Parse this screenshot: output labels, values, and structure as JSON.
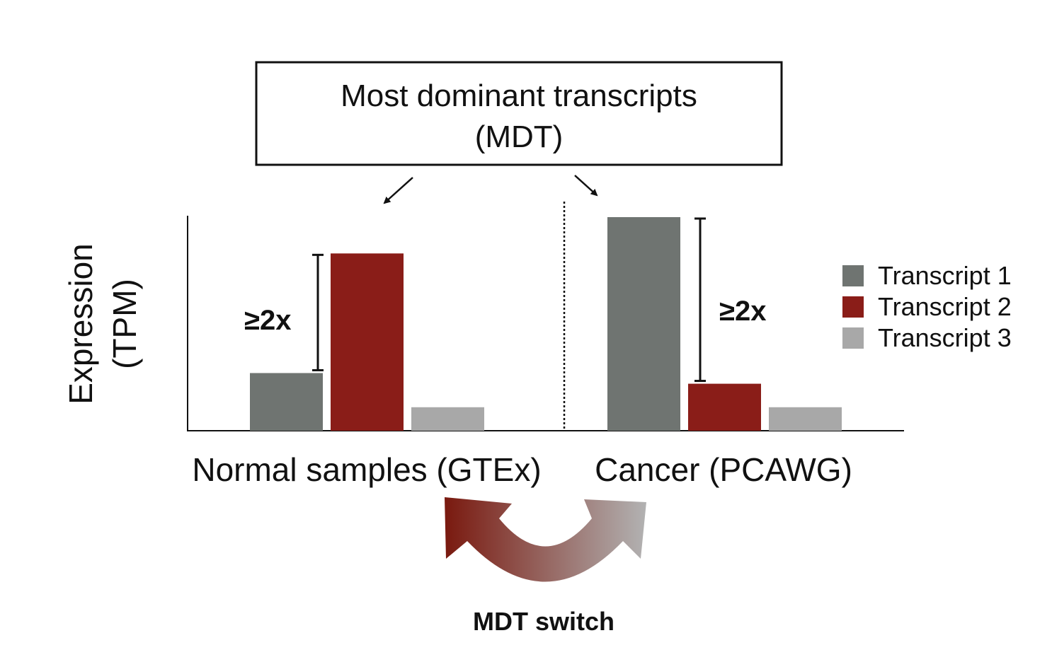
{
  "title_box": {
    "line1": "Most dominant transcripts",
    "line2": "(MDT)"
  },
  "y_axis": {
    "line1": "Expression",
    "line2": "(TPM)"
  },
  "legend": [
    {
      "label": "Transcript 1",
      "color": "#6f7471"
    },
    {
      "label": "Transcript 2",
      "color": "#8a1d18"
    },
    {
      "label": "Transcript 3",
      "color": "#a8a8a8"
    }
  ],
  "chart_data": {
    "type": "bar",
    "ylabel": "Expression (TPM)",
    "ylim": [
      0,
      100
    ],
    "series_names": [
      "Transcript 1",
      "Transcript 2",
      "Transcript 3"
    ],
    "groups": [
      {
        "label": "Normal samples (GTEx)",
        "values": [
          27,
          83,
          11
        ],
        "annotation": "≥2x"
      },
      {
        "label": "Cancer (PCAWG)",
        "values": [
          100,
          22,
          11
        ],
        "annotation": "≥2x"
      }
    ]
  },
  "switch_label": "MDT switch"
}
